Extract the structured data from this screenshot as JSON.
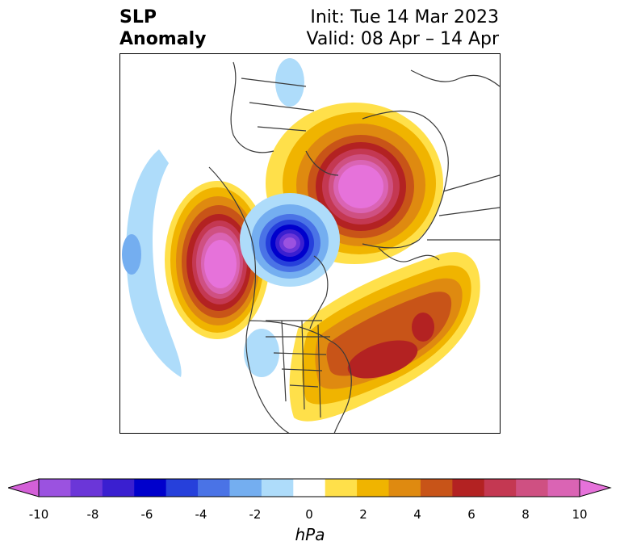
{
  "title": {
    "variable_line1": "SLP",
    "variable_line2": "Anomaly",
    "init": "Init: Tue 14 Mar 2023",
    "valid": "Valid: 08 Apr – 14 Apr"
  },
  "colorbar": {
    "units": "hPa",
    "tick_labels": [
      "-10",
      "-8",
      "-6",
      "-4",
      "-2",
      "0",
      "2",
      "4",
      "6",
      "8",
      "10"
    ],
    "colors": [
      "#d460d8",
      "#9b52e0",
      "#6b36d8",
      "#3a1fd0",
      "#0000cc",
      "#2640db",
      "#4a73e6",
      "#74aef0",
      "#aedcfa",
      "#ffffff",
      "#ffe04a",
      "#f0b400",
      "#df8a10",
      "#c85418",
      "#b32222",
      "#c43852",
      "#cf5082",
      "#da64b4",
      "#e672da"
    ],
    "extend": "both"
  },
  "map": {
    "projection": "polar stereographic, North America / Arctic",
    "features": [
      "coastlines",
      "country borders",
      "US state borders",
      "Canadian province borders"
    ],
    "anomaly_centers": [
      {
        "label": "Eurasia / Arctic high",
        "peak_hpa": 10,
        "sign": "positive"
      },
      {
        "label": "NE Pacific / Gulf of Alaska high",
        "peak_hpa": 10,
        "sign": "positive"
      },
      {
        "label": "Canadian Arctic low",
        "peak_hpa": -6,
        "sign": "negative"
      },
      {
        "label": "Western Atlantic / eastern US high",
        "peak_hpa": 6,
        "sign": "positive"
      },
      {
        "label": "Central Pacific weak low",
        "peak_hpa": -4,
        "sign": "negative"
      }
    ]
  }
}
